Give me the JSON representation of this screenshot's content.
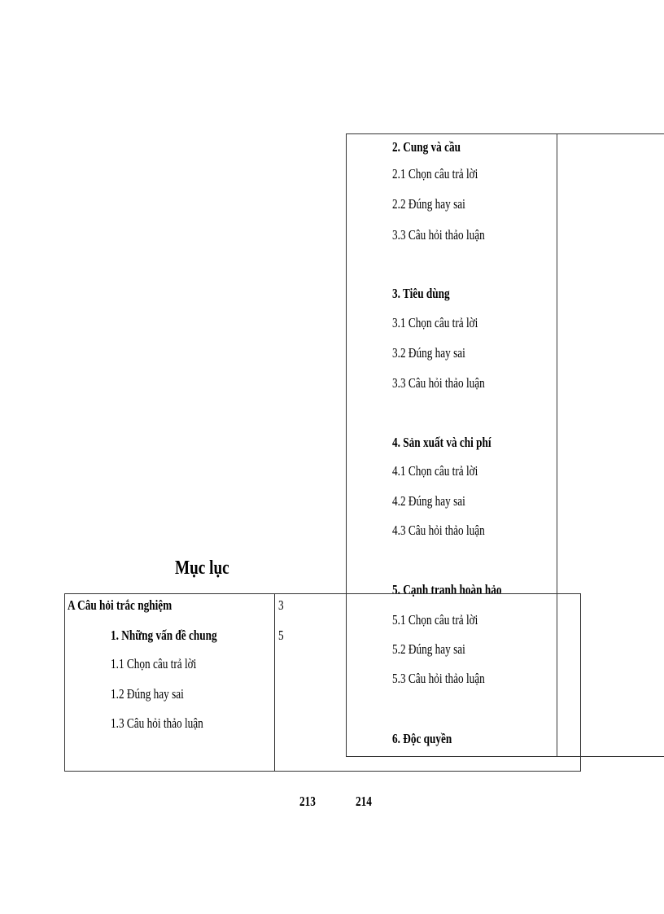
{
  "title": "Mục lục",
  "left_table": {
    "rows": [
      {
        "label": "A Câu hỏi trắc nghiệm",
        "page": "3"
      },
      {
        "label": "1.  Những vấn đề chung",
        "page": "5"
      },
      {
        "label": "1.1 Chọn câu trả lời"
      },
      {
        "label": "1.2 Đúng  hay sai"
      },
      {
        "label": "1.3 Câu hỏi thảo luận"
      }
    ]
  },
  "right_table": {
    "items": [
      "2.   Cung và cầu",
      "2.1 Chọn câu trả lời",
      "2.2 Đúng  hay sai",
      "3.3 Câu hỏi thảo luận",
      "3.  Tiêu dùng",
      "3.1 Chọn câu trả lời",
      "3.2 Đúng  hay sai",
      "3.3 Câu hỏi thảo luận",
      "4.  Sản xuất và chi phí",
      "4.1 Chọn câu trả lời",
      "4.2 Đúng  hay sai",
      "4.3 Câu hỏi thảo luận",
      "5.  Cạnh tranh hoàn hảo",
      "5.1 Chọn câu trả lời",
      "5.2 Đúng  hay sai",
      "5.3 Câu hỏi thảo luận",
      "6.  Độc quyền"
    ]
  },
  "page_numbers": [
    "213",
    "214"
  ]
}
